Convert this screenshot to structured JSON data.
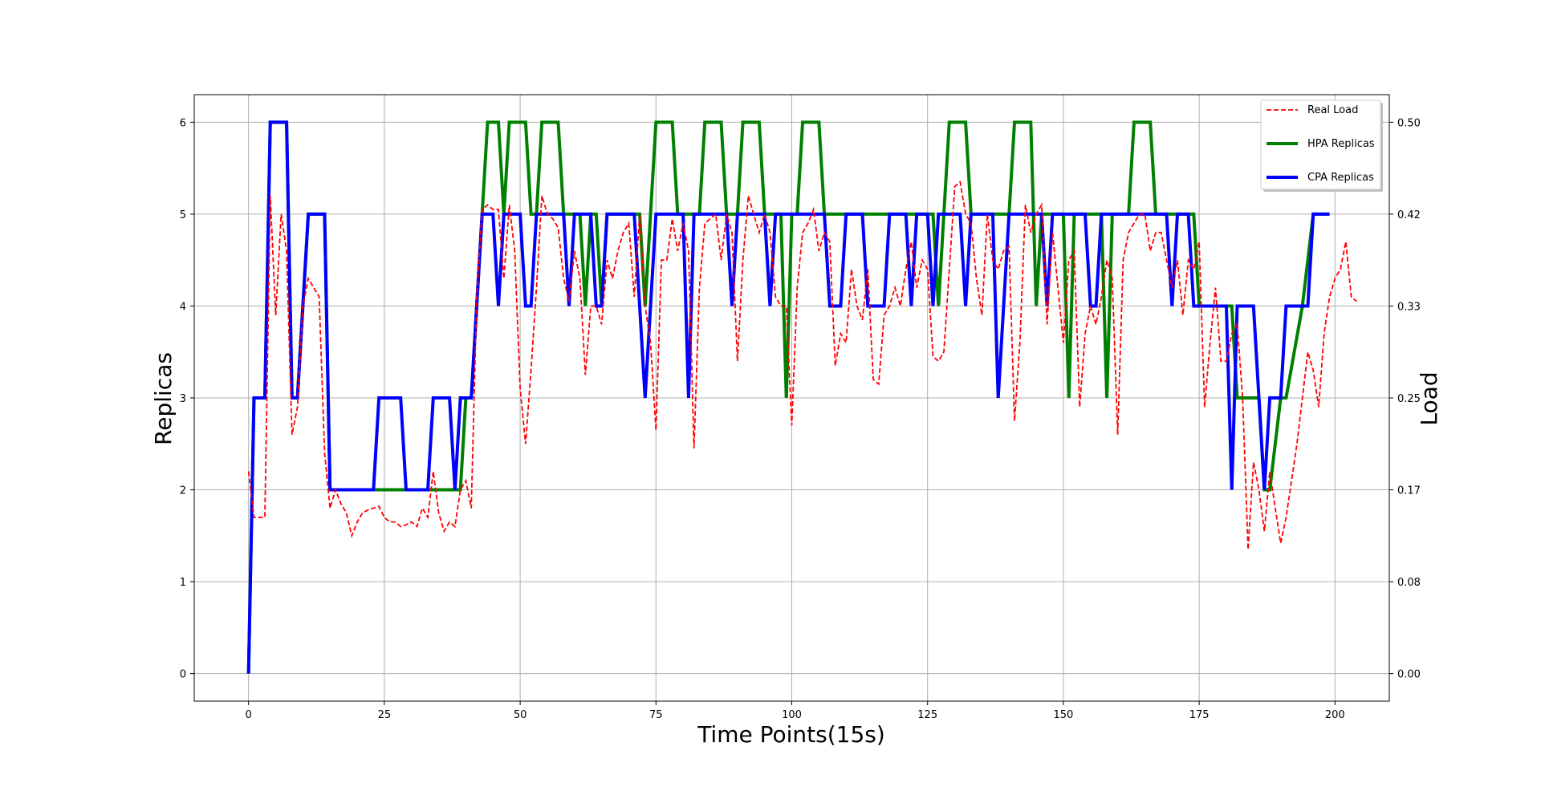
{
  "chart_data": {
    "type": "line",
    "xlabel": "Time Points(15s)",
    "ylabel": "Replicas",
    "y2label": "Load",
    "xlim": [
      -10,
      210
    ],
    "ylim": [
      -0.3,
      6.3
    ],
    "x_ticks": [
      0,
      25,
      50,
      75,
      100,
      125,
      150,
      175,
      200
    ],
    "y_ticks": [
      0,
      1,
      2,
      3,
      4,
      5,
      6
    ],
    "y2_ticks": [
      "0.00",
      "0.08",
      "0.17",
      "0.25",
      "0.33",
      "0.42",
      "0.50"
    ],
    "y2_scale": "replicas / 12",
    "grid": true,
    "legend_position": "upper-right",
    "colors": {
      "real_load": "#ff0000",
      "hpa": "#008000",
      "cpa": "#0000ff"
    },
    "series": [
      {
        "name": "Real Load",
        "style": "dashed",
        "values": [
          2.2,
          1.7,
          1.7,
          1.7,
          5.2,
          3.9,
          5.0,
          4.6,
          2.6,
          2.9,
          4.0,
          4.3,
          4.2,
          4.1,
          2.4,
          1.8,
          2.0,
          1.85,
          1.75,
          1.5,
          1.65,
          1.75,
          1.78,
          1.8,
          1.82,
          1.7,
          1.65,
          1.65,
          1.6,
          1.62,
          1.65,
          1.6,
          1.8,
          1.7,
          2.2,
          1.75,
          1.55,
          1.65,
          1.6,
          2.0,
          2.1,
          1.8,
          4.1,
          5.05,
          5.1,
          5.05,
          5.05,
          4.3,
          5.1,
          4.6,
          3.1,
          2.5,
          3.3,
          4.2,
          5.2,
          5.0,
          4.95,
          4.85,
          4.3,
          4.05,
          4.6,
          4.3,
          3.25,
          4.0,
          4.0,
          3.8,
          4.5,
          4.3,
          4.6,
          4.8,
          4.9,
          4.1,
          5.0,
          4.0,
          3.6,
          2.65,
          4.5,
          4.5,
          4.95,
          4.6,
          4.9,
          4.6,
          2.45,
          4.2,
          4.9,
          4.95,
          5.0,
          4.5,
          5.0,
          4.8,
          3.4,
          4.5,
          5.2,
          5.0,
          4.8,
          5.0,
          4.8,
          4.1,
          4.0,
          4.0,
          2.7,
          4.2,
          4.8,
          4.9,
          5.05,
          4.6,
          4.8,
          4.7,
          3.35,
          3.7,
          3.6,
          4.4,
          4.0,
          3.85,
          4.4,
          3.2,
          3.15,
          3.9,
          4.0,
          4.2,
          4.0,
          4.4,
          4.7,
          4.2,
          4.5,
          4.4,
          3.45,
          3.4,
          3.5,
          4.4,
          5.3,
          5.35,
          5.0,
          4.9,
          4.3,
          3.9,
          5.0,
          4.5,
          4.4,
          4.6,
          4.65,
          2.75,
          3.6,
          5.1,
          4.8,
          5.0,
          5.1,
          3.8,
          4.8,
          4.2,
          3.6,
          4.5,
          4.6,
          2.9,
          3.7,
          4.0,
          3.8,
          4.1,
          4.5,
          4.3,
          2.6,
          4.5,
          4.8,
          4.9,
          5.0,
          5.0,
          4.6,
          4.8,
          4.8,
          4.5,
          4.2,
          4.5,
          3.9,
          4.5,
          4.4,
          4.7,
          2.9,
          3.6,
          4.2,
          3.4,
          3.4,
          3.7,
          3.8,
          3.0,
          1.35,
          2.3,
          2.0,
          1.55,
          2.2,
          1.8,
          1.42,
          1.7,
          2.1,
          2.5,
          3.0,
          3.5,
          3.3,
          2.9,
          3.7,
          4.1,
          4.3,
          4.4,
          4.7,
          4.1,
          4.05
        ],
        "x_start": 0,
        "x_step": 1
      },
      {
        "name": "HPA Replicas",
        "style": "solid",
        "points": [
          [
            0,
            0
          ],
          [
            1,
            3
          ],
          [
            3,
            3
          ],
          [
            4,
            6
          ],
          [
            7,
            6
          ],
          [
            8,
            3
          ],
          [
            9,
            3
          ],
          [
            11,
            5
          ],
          [
            14,
            5
          ],
          [
            15,
            2
          ],
          [
            39,
            2
          ],
          [
            40,
            3
          ],
          [
            41,
            3
          ],
          [
            43,
            5
          ],
          [
            44,
            6
          ],
          [
            46,
            6
          ],
          [
            47,
            5
          ],
          [
            48,
            6
          ],
          [
            51,
            6
          ],
          [
            52,
            5
          ],
          [
            53,
            5
          ],
          [
            54,
            6
          ],
          [
            57,
            6
          ],
          [
            58,
            5
          ],
          [
            61,
            5
          ],
          [
            62,
            4
          ],
          [
            63,
            5
          ],
          [
            64,
            5
          ],
          [
            65,
            4
          ],
          [
            66,
            5
          ],
          [
            72,
            5
          ],
          [
            73,
            4
          ],
          [
            74,
            5
          ],
          [
            75,
            6
          ],
          [
            78,
            6
          ],
          [
            79,
            5
          ],
          [
            83,
            5
          ],
          [
            84,
            6
          ],
          [
            87,
            6
          ],
          [
            88,
            5
          ],
          [
            90,
            5
          ],
          [
            91,
            6
          ],
          [
            94,
            6
          ],
          [
            95,
            5
          ],
          [
            98,
            5
          ],
          [
            99,
            3
          ],
          [
            100,
            5
          ],
          [
            101,
            5
          ],
          [
            102,
            6
          ],
          [
            105,
            6
          ],
          [
            106,
            5
          ],
          [
            126,
            5
          ],
          [
            127,
            4
          ],
          [
            128,
            5
          ],
          [
            129,
            6
          ],
          [
            132,
            6
          ],
          [
            133,
            5
          ],
          [
            140,
            5
          ],
          [
            141,
            6
          ],
          [
            144,
            6
          ],
          [
            145,
            4
          ],
          [
            146,
            5
          ],
          [
            150,
            5
          ],
          [
            151,
            3
          ],
          [
            152,
            5
          ],
          [
            157,
            5
          ],
          [
            158,
            3
          ],
          [
            159,
            5
          ],
          [
            162,
            5
          ],
          [
            163,
            6
          ],
          [
            166,
            6
          ],
          [
            167,
            5
          ],
          [
            174,
            5
          ],
          [
            175,
            4
          ],
          [
            181,
            4
          ],
          [
            182,
            3
          ],
          [
            186,
            3
          ],
          [
            187,
            2
          ],
          [
            188,
            2
          ],
          [
            190,
            3
          ],
          [
            191,
            3
          ],
          [
            194,
            4
          ],
          [
            196,
            5
          ],
          [
            199,
            5
          ]
        ]
      },
      {
        "name": "CPA Replicas",
        "style": "solid",
        "points": [
          [
            0,
            0
          ],
          [
            1,
            3
          ],
          [
            3,
            3
          ],
          [
            4,
            6
          ],
          [
            7,
            6
          ],
          [
            8,
            3
          ],
          [
            9,
            3
          ],
          [
            11,
            5
          ],
          [
            14,
            5
          ],
          [
            15,
            2
          ],
          [
            23,
            2
          ],
          [
            24,
            3
          ],
          [
            28,
            3
          ],
          [
            29,
            2
          ],
          [
            33,
            2
          ],
          [
            34,
            3
          ],
          [
            37,
            3
          ],
          [
            38,
            2
          ],
          [
            39,
            3
          ],
          [
            41,
            3
          ],
          [
            43,
            5
          ],
          [
            45,
            5
          ],
          [
            46,
            4
          ],
          [
            47,
            5
          ],
          [
            50,
            5
          ],
          [
            51,
            4
          ],
          [
            52,
            4
          ],
          [
            53,
            5
          ],
          [
            58,
            5
          ],
          [
            59,
            4
          ],
          [
            60,
            5
          ],
          [
            63,
            5
          ],
          [
            64,
            4
          ],
          [
            65,
            4
          ],
          [
            66,
            5
          ],
          [
            71,
            5
          ],
          [
            73,
            3
          ],
          [
            74,
            4
          ],
          [
            75,
            5
          ],
          [
            80,
            5
          ],
          [
            81,
            3
          ],
          [
            82,
            5
          ],
          [
            88,
            5
          ],
          [
            89,
            4
          ],
          [
            90,
            5
          ],
          [
            95,
            5
          ],
          [
            96,
            4
          ],
          [
            97,
            5
          ],
          [
            106,
            5
          ],
          [
            107,
            4
          ],
          [
            109,
            4
          ],
          [
            110,
            5
          ],
          [
            113,
            5
          ],
          [
            114,
            4
          ],
          [
            117,
            4
          ],
          [
            118,
            5
          ],
          [
            121,
            5
          ],
          [
            122,
            4
          ],
          [
            123,
            5
          ],
          [
            125,
            5
          ],
          [
            126,
            4
          ],
          [
            127,
            5
          ],
          [
            131,
            5
          ],
          [
            132,
            4
          ],
          [
            133,
            5
          ],
          [
            137,
            5
          ],
          [
            138,
            3
          ],
          [
            140,
            5
          ],
          [
            146,
            5
          ],
          [
            147,
            4
          ],
          [
            148,
            5
          ],
          [
            154,
            5
          ],
          [
            155,
            4
          ],
          [
            156,
            4
          ],
          [
            157,
            5
          ],
          [
            169,
            5
          ],
          [
            170,
            4
          ],
          [
            171,
            5
          ],
          [
            173,
            5
          ],
          [
            174,
            4
          ],
          [
            180,
            4
          ],
          [
            181,
            2
          ],
          [
            182,
            4
          ],
          [
            185,
            4
          ],
          [
            187,
            2
          ],
          [
            188,
            3
          ],
          [
            190,
            3
          ],
          [
            191,
            4
          ],
          [
            195,
            4
          ],
          [
            196,
            5
          ],
          [
            199,
            5
          ]
        ]
      }
    ]
  }
}
